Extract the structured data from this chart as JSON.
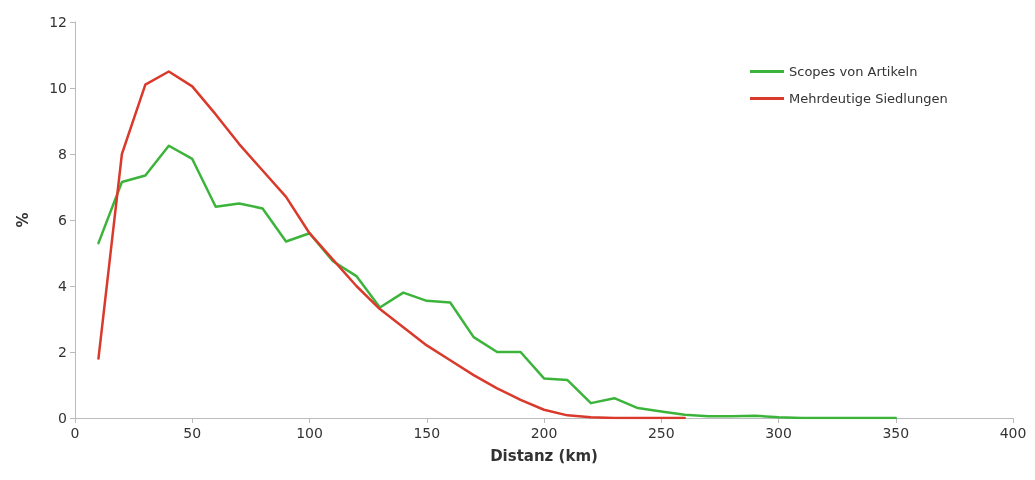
{
  "chart_data": {
    "type": "line",
    "xlabel": "Distanz (km)",
    "ylabel": "%",
    "xlim": [
      0,
      400
    ],
    "xticks": [
      0,
      50,
      100,
      150,
      200,
      250,
      300,
      350,
      400
    ],
    "ylim": [
      0,
      12
    ],
    "yticks": [
      0,
      2,
      4,
      6,
      8,
      10,
      12
    ],
    "grid": false,
    "legend": "top right",
    "marker": "none",
    "line_style": "solid",
    "series": [
      {
        "name": "Scopes von Artikeln",
        "color": "#3cb43c",
        "x": [
          10,
          20,
          30,
          40,
          50,
          60,
          70,
          80,
          90,
          100,
          110,
          120,
          130,
          140,
          150,
          160,
          170,
          180,
          190,
          200,
          210,
          220,
          230,
          240,
          250,
          260,
          270,
          280,
          290,
          300,
          310,
          320,
          330,
          340,
          350
        ],
        "values": [
          5.3,
          7.15,
          7.35,
          8.25,
          7.85,
          6.4,
          6.5,
          6.35,
          5.35,
          5.6,
          4.75,
          4.3,
          3.35,
          3.8,
          3.55,
          3.5,
          2.45,
          2.0,
          2.0,
          1.2,
          1.15,
          0.45,
          0.6,
          0.3,
          0.2,
          0.1,
          0.05,
          0.05,
          0.07,
          0.02,
          0,
          0,
          0,
          0,
          0
        ]
      },
      {
        "name": "Mehrdeutige Siedlungen",
        "color": "#d93a2b",
        "x": [
          10,
          20,
          30,
          40,
          50,
          60,
          70,
          80,
          90,
          100,
          110,
          120,
          130,
          140,
          150,
          160,
          170,
          180,
          190,
          200,
          210,
          220,
          230,
          240,
          250,
          260
        ],
        "values": [
          1.8,
          8.0,
          10.1,
          10.5,
          10.05,
          9.2,
          8.3,
          7.5,
          6.7,
          5.6,
          4.8,
          4.0,
          3.3,
          2.75,
          2.2,
          1.75,
          1.3,
          0.9,
          0.55,
          0.25,
          0.08,
          0.02,
          0,
          0,
          0,
          0
        ]
      }
    ]
  }
}
